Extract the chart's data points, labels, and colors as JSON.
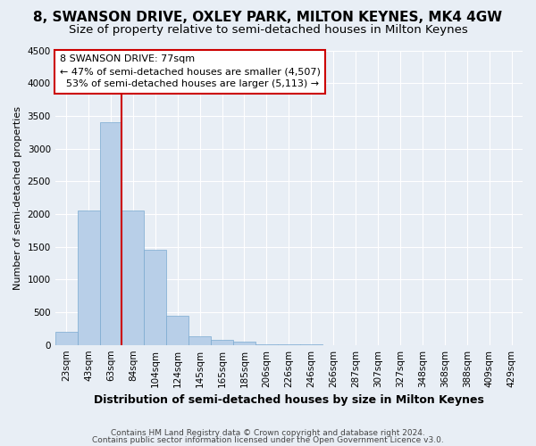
{
  "title": "8, SWANSON DRIVE, OXLEY PARK, MILTON KEYNES, MK4 4GW",
  "subtitle": "Size of property relative to semi-detached houses in Milton Keynes",
  "xlabel": "Distribution of semi-detached houses by size in Milton Keynes",
  "ylabel": "Number of semi-detached properties",
  "footnote1": "Contains HM Land Registry data © Crown copyright and database right 2024.",
  "footnote2": "Contains public sector information licensed under the Open Government Licence v3.0.",
  "categories": [
    "23sqm",
    "43sqm",
    "63sqm",
    "84sqm",
    "104sqm",
    "124sqm",
    "145sqm",
    "165sqm",
    "185sqm",
    "206sqm",
    "226sqm",
    "246sqm",
    "266sqm",
    "287sqm",
    "307sqm",
    "327sqm",
    "348sqm",
    "368sqm",
    "388sqm",
    "409sqm",
    "429sqm"
  ],
  "values": [
    200,
    2050,
    3400,
    2050,
    1450,
    450,
    130,
    80,
    50,
    10,
    5,
    3,
    2,
    1,
    1,
    0,
    0,
    0,
    0,
    0,
    0
  ],
  "bar_color": "#b8cfe8",
  "bar_edge_color": "#7aaad0",
  "vline_x_index": 3,
  "property_size": "77sqm",
  "pct_smaller": 47,
  "count_smaller": 4507,
  "pct_larger": 53,
  "count_larger": 5113,
  "annotation_box_facecolor": "#ffffff",
  "annotation_box_edgecolor": "#cc0000",
  "vline_color": "#cc0000",
  "ylim": [
    0,
    4500
  ],
  "bg_color": "#e8eef5",
  "grid_color": "#ffffff",
  "title_fontsize": 11,
  "subtitle_fontsize": 9.5,
  "ylabel_fontsize": 8,
  "xlabel_fontsize": 9,
  "tick_fontsize": 7.5,
  "annot_fontsize": 8,
  "footnote_fontsize": 6.5
}
